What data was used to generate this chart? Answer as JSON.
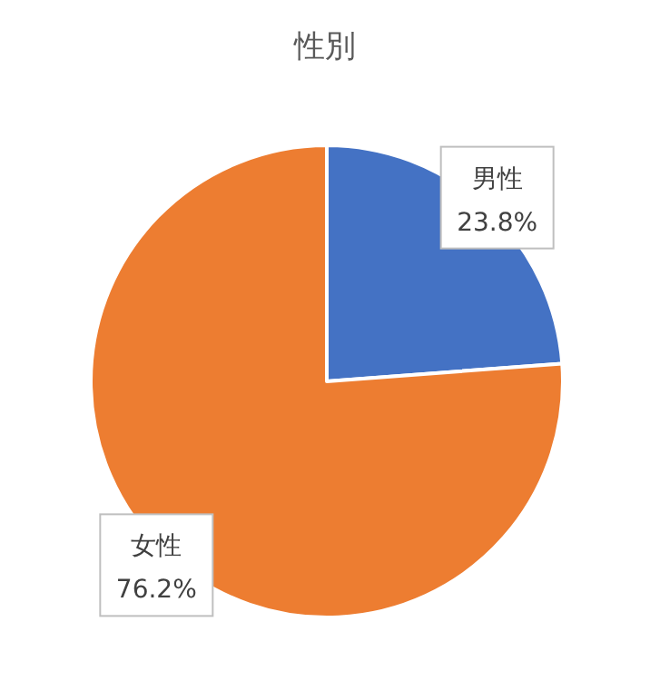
{
  "chart_data": {
    "type": "pie",
    "title": "性別",
    "categories": [
      "男性",
      "女性"
    ],
    "values": [
      23.8,
      76.2
    ],
    "value_labels": [
      "23.8%",
      "76.2%"
    ],
    "colors": [
      "#4472c4",
      "#ed7d31"
    ]
  }
}
